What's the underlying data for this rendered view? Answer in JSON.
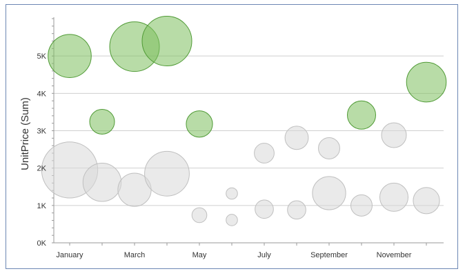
{
  "chart_data": {
    "type": "scatter",
    "subtype": "bubble",
    "xlabel": "",
    "ylabel": "UnitPrice (Sum)",
    "ylim": [
      0,
      6000
    ],
    "grid": true,
    "x_tick_labels": [
      "January",
      "March",
      "May",
      "July",
      "September",
      "November"
    ],
    "y_tick_labels": [
      "0K",
      "1K",
      "2K",
      "3K",
      "4K",
      "5K"
    ],
    "colors": {
      "highlight": "#7dbf5f",
      "highlight_edge": "#4f9a35",
      "other": "#d9d9d9",
      "other_edge": "#bfbfbf",
      "grid": "#cfcfcf"
    },
    "series": [
      {
        "role": "highlight",
        "points": [
          {
            "month": 1,
            "y": 5000,
            "size": 0.87
          },
          {
            "month": 2,
            "y": 3240,
            "size": 0.5
          },
          {
            "month": 3,
            "y": 5250,
            "size": 1.0
          },
          {
            "month": 4,
            "y": 5400,
            "size": 1.0
          },
          {
            "month": 5,
            "y": 3180,
            "size": 0.53
          },
          {
            "month": 10,
            "y": 3420,
            "size": 0.57
          },
          {
            "month": 12,
            "y": 4300,
            "size": 0.8
          }
        ]
      },
      {
        "role": "other",
        "points": [
          {
            "month": 1,
            "y": 1950,
            "size": 1.13
          },
          {
            "month": 2,
            "y": 1620,
            "size": 0.77
          },
          {
            "month": 3,
            "y": 1420,
            "size": 0.67
          },
          {
            "month": 4,
            "y": 1850,
            "size": 0.9
          },
          {
            "month": 5,
            "y": 740,
            "size": 0.3
          },
          {
            "month": 6,
            "y": 1320,
            "size": 0.23
          },
          {
            "month": 6,
            "y": 610,
            "size": 0.23
          },
          {
            "month": 7,
            "y": 2400,
            "size": 0.4
          },
          {
            "month": 7,
            "y": 900,
            "size": 0.37
          },
          {
            "month": 8,
            "y": 2810,
            "size": 0.47
          },
          {
            "month": 8,
            "y": 880,
            "size": 0.37
          },
          {
            "month": 9,
            "y": 2530,
            "size": 0.43
          },
          {
            "month": 9,
            "y": 1330,
            "size": 0.67
          },
          {
            "month": 10,
            "y": 1000,
            "size": 0.43
          },
          {
            "month": 11,
            "y": 2880,
            "size": 0.5
          },
          {
            "month": 11,
            "y": 1220,
            "size": 0.57
          },
          {
            "month": 12,
            "y": 1130,
            "size": 0.53
          }
        ]
      }
    ]
  }
}
